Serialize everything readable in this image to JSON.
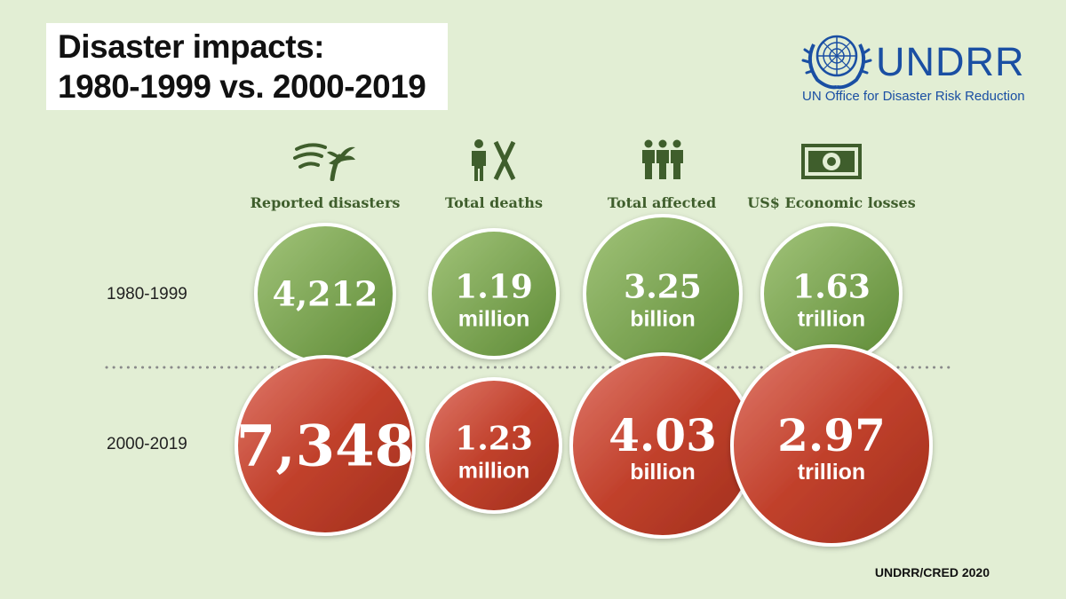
{
  "title": {
    "line1": "Disaster impacts:",
    "line2": "1980-1999 vs. 2000-2019"
  },
  "logo": {
    "name": "UNDRR",
    "subtitle": "UN Office for Disaster Risk Reduction"
  },
  "source": "UNDRR/CRED 2020",
  "colors": {
    "period1": "#7aa34a",
    "period2": "#bc3a26",
    "label": "#3f5e2c",
    "background": "#e2eed4",
    "brand": "#1a4fa3"
  },
  "chart_data": {
    "type": "bubble-comparison",
    "title": "Disaster impacts: 1980-1999 vs. 2000-2019",
    "categories": [
      "Reported disasters",
      "Total deaths",
      "Total affected",
      "US$ Economic losses"
    ],
    "category_icons": [
      "storm-icon",
      "deaths-icon",
      "people-icon",
      "money-icon"
    ],
    "units": [
      "",
      "million",
      "billion",
      "trillion"
    ],
    "series": [
      {
        "name": "1980-1999",
        "values": [
          4212,
          1.19,
          3.25,
          1.63
        ],
        "labels": [
          "4,212",
          "1.19",
          "3.25",
          "1.63"
        ]
      },
      {
        "name": "2000-2019",
        "values": [
          7348,
          1.23,
          4.03,
          2.97
        ],
        "labels": [
          "7,348",
          "1.23",
          "4.03",
          "2.97"
        ]
      }
    ]
  }
}
